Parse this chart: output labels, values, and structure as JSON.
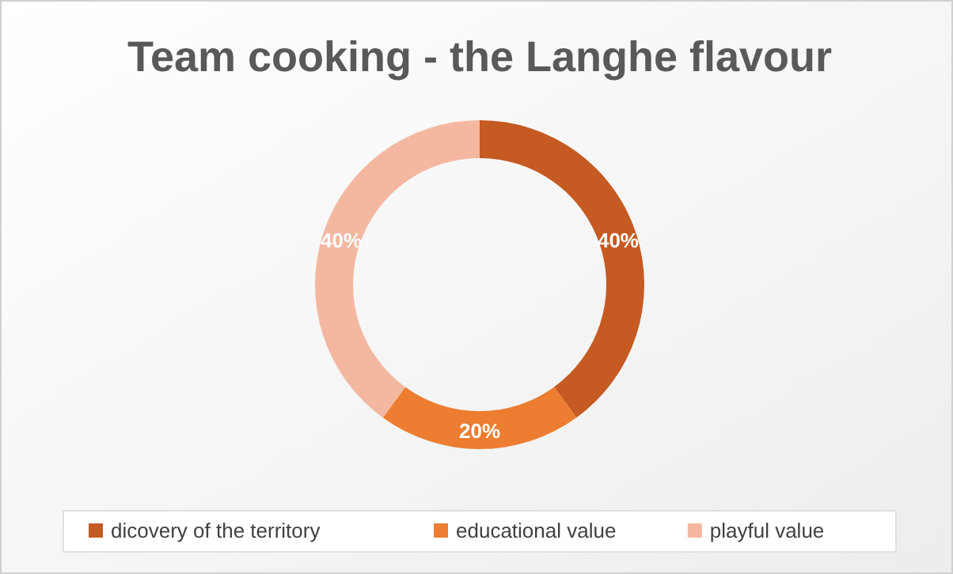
{
  "chart_data": {
    "type": "donut",
    "title": "Team cooking - the Langhe flavour",
    "categories": [
      "dicovery of the territory",
      "educational value",
      "playful value"
    ],
    "values": [
      40,
      20,
      40
    ],
    "colors": [
      "#c55a22",
      "#ed7d31",
      "#f4b8a0"
    ],
    "value_labels": [
      "40%",
      "20%",
      "40%"
    ],
    "legend": "bottom"
  }
}
